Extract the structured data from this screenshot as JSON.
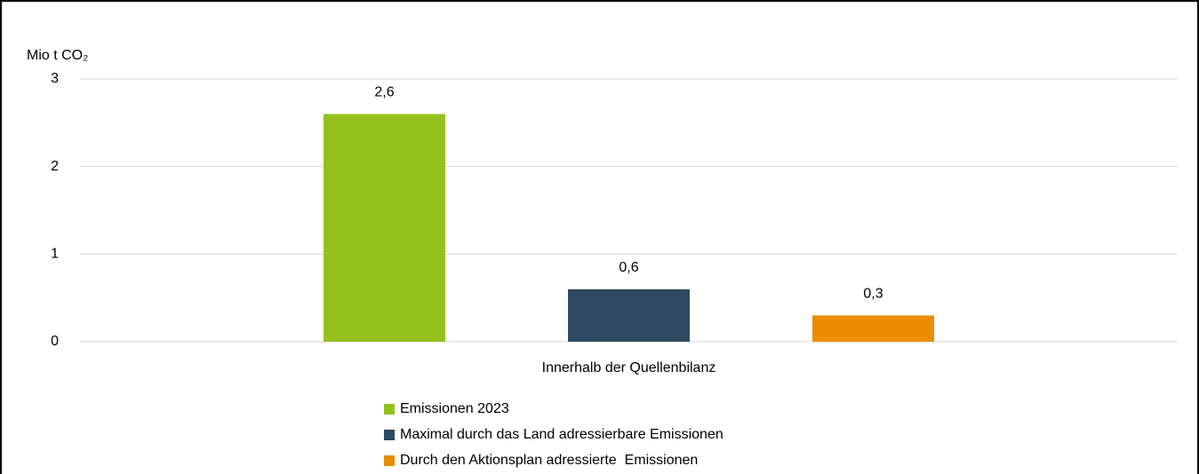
{
  "chart_data": {
    "type": "bar",
    "y_label": "Mio t CO₂",
    "categories": [
      "Innerhalb der Quellenbilanz"
    ],
    "series": [
      {
        "name": "Emissionen 2023",
        "color": "#95c11f",
        "values": [
          2.6
        ],
        "value_labels": [
          "2,6"
        ]
      },
      {
        "name": "Maximal durch das Land adressierbare Emissionen",
        "color": "#2e4a62",
        "values": [
          0.6
        ],
        "value_labels": [
          "0,6"
        ]
      },
      {
        "name": "Durch den Aktionsplan adressierte  Emissionen",
        "color": "#ec8d00",
        "values": [
          0.3
        ],
        "value_labels": [
          "0,3"
        ]
      }
    ],
    "ylim": [
      0,
      3
    ],
    "yticks": [
      0,
      1,
      2,
      3
    ],
    "grid": true,
    "legend": "bottom"
  }
}
